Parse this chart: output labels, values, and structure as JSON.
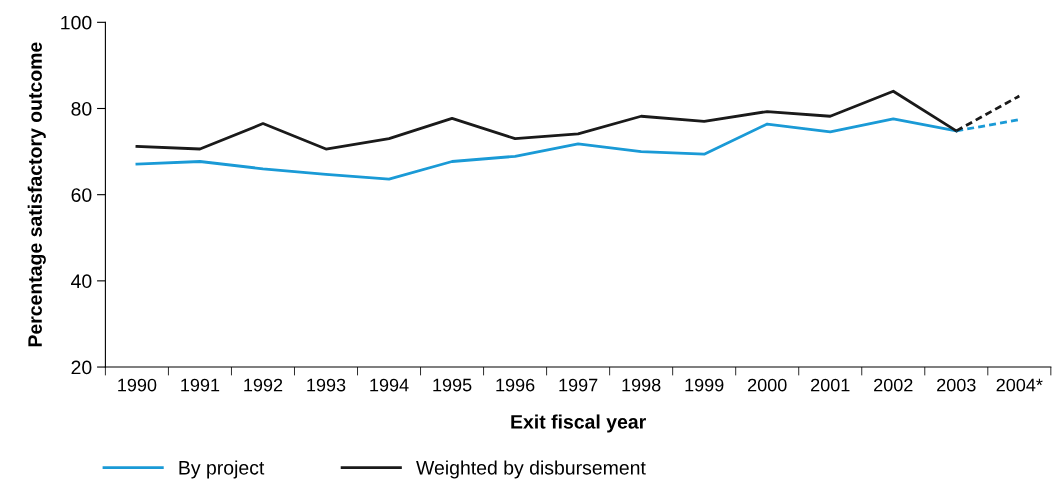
{
  "chart_data": {
    "type": "line",
    "xlabel": "Exit fiscal year",
    "ylabel": "Percentage satisfactory outcome",
    "categories": [
      "1990",
      "1991",
      "1992",
      "1993",
      "1994",
      "1995",
      "1996",
      "1997",
      "1998",
      "1999",
      "2000",
      "2001",
      "2002",
      "2003",
      "2004*"
    ],
    "series": [
      {
        "name": "By project",
        "color": "#1a9ad6",
        "line_style": "solid",
        "values": [
          67.1,
          67.7,
          66.0,
          64.7,
          63.6,
          67.7,
          68.9,
          71.8,
          70.0,
          69.4,
          76.4,
          74.6,
          77.6,
          74.8,
          null
        ]
      },
      {
        "name": "Weighted by disbursement",
        "color": "#1a1a1a",
        "line_style": "solid",
        "values": [
          71.2,
          70.6,
          76.5,
          70.6,
          73.0,
          77.7,
          73.0,
          74.1,
          78.2,
          77.0,
          79.3,
          78.2,
          84.0,
          74.8,
          null
        ]
      },
      {
        "color": "#1a9ad6",
        "line_style": "dashed",
        "values": [
          null,
          null,
          null,
          null,
          null,
          null,
          null,
          null,
          null,
          null,
          null,
          null,
          null,
          74.8,
          77.4
        ]
      },
      {
        "color": "#1a1a1a",
        "line_style": "dashed",
        "values": [
          null,
          null,
          null,
          null,
          null,
          null,
          null,
          null,
          null,
          null,
          null,
          null,
          null,
          74.8,
          82.9
        ]
      }
    ],
    "ylim": [
      20,
      100
    ],
    "yticks": [
      20,
      40,
      60,
      80,
      100
    ],
    "grid": false,
    "legend": "bottom",
    "marker": "none"
  }
}
